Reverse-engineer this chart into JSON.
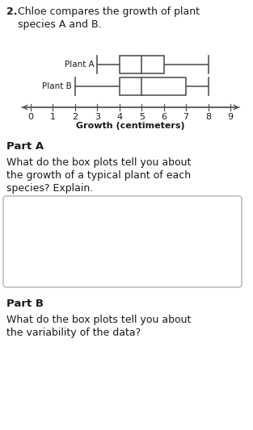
{
  "title_line1": "2. Chloe compares the growth of plant",
  "title_line2": "    species A and B.",
  "plant_A_label": "Plant A",
  "plant_B_label": "Plant B",
  "plant_A": {
    "min": 3,
    "q1": 4,
    "median": 5,
    "q3": 6,
    "max": 8
  },
  "plant_B": {
    "min": 2,
    "q1": 4,
    "median": 5,
    "q3": 7,
    "max": 8
  },
  "x_ticks": [
    0,
    1,
    2,
    3,
    4,
    5,
    6,
    7,
    8,
    9
  ],
  "xlabel": "Growth (centimeters)",
  "part_a_title": "Part A",
  "part_a_q": "What do the box plots tell you about\nthe growth of a typical plant of each\nspecies? Explain.",
  "part_b_title": "Part B",
  "part_b_q": "What do the box plots tell you about\nthe variability of the data?",
  "edge_color": "#555555",
  "text_color": "#1a1a1a",
  "bg_color": "#ffffff"
}
